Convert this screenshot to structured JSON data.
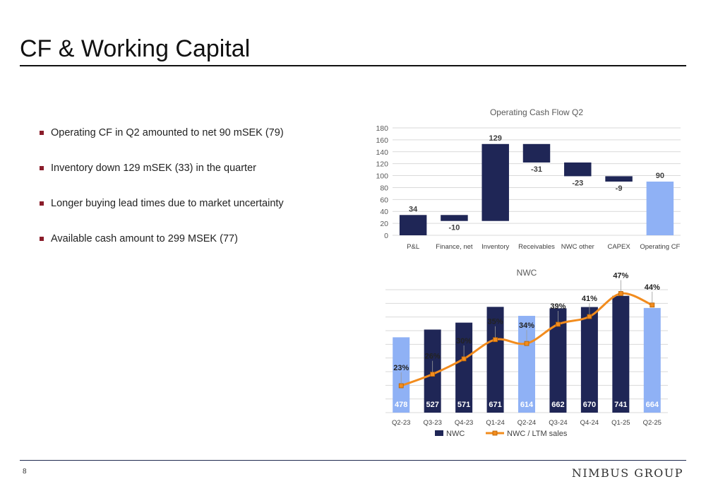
{
  "page": {
    "title": "CF & Working Capital",
    "page_number": "8",
    "logo_text": "NIMBUS GROUP"
  },
  "bullets": [
    "Operating CF in Q2 amounted to net 90 mSEK (79)",
    "Inventory down 129 mSEK (33) in the quarter",
    "Longer buying lead times due to market uncertainty",
    "Available cash amount to 299 MSEK (77)"
  ],
  "colors": {
    "navy": "#1f2656",
    "light_blue": "#8fb1f5",
    "orange": "#f28c1e",
    "bullet": "#8a1c2a",
    "grid": "#d9d9d9"
  },
  "chart_data": [
    {
      "type": "waterfall",
      "title": "Operating Cash Flow Q2",
      "categories": [
        "P&L",
        "Finance, net",
        "Inventory",
        "Receivables",
        "NWC other",
        "CAPEX",
        "Operating CF"
      ],
      "values": [
        34,
        -10,
        129,
        -31,
        -23,
        -9,
        90
      ],
      "labels": [
        "34",
        "-10",
        "129",
        "-31",
        "-23",
        "-9",
        "90"
      ],
      "bar_kinds": [
        "delta",
        "delta",
        "delta",
        "delta",
        "delta",
        "delta",
        "total"
      ],
      "yticks": [
        "0",
        "20",
        "40",
        "60",
        "80",
        "100",
        "120",
        "140",
        "160",
        "180"
      ],
      "ylim": [
        0,
        180
      ],
      "grid": true
    },
    {
      "type": "bar+line",
      "title": "NWC",
      "categories": [
        "Q2-23",
        "Q3-23",
        "Q4-23",
        "Q1-24",
        "Q2-24",
        "Q3-24",
        "Q4-24",
        "Q1-25",
        "Q2-25"
      ],
      "series": [
        {
          "name": "NWC",
          "kind": "bar",
          "values": [
            478,
            527,
            571,
            671,
            614,
            662,
            670,
            741,
            664
          ],
          "labels": [
            "478",
            "527",
            "571",
            "671",
            "614",
            "662",
            "670",
            "741",
            "664"
          ],
          "highlight": [
            true,
            false,
            false,
            false,
            true,
            false,
            false,
            false,
            true
          ]
        },
        {
          "name": "NWC / LTM sales",
          "kind": "line",
          "values": [
            23,
            26,
            30,
            35,
            34,
            39,
            41,
            47,
            44
          ],
          "labels": [
            "23%",
            "26%",
            "30%",
            "35%",
            "34%",
            "39%",
            "41%",
            "47%",
            "44%"
          ]
        }
      ],
      "legend_position": "bottom",
      "grid": true
    }
  ]
}
